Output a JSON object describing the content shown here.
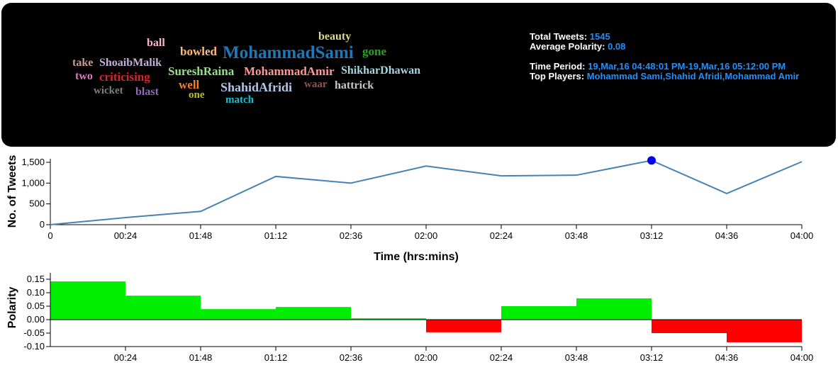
{
  "wordcloud": [
    {
      "text": "ball",
      "color": "#f7b6d2",
      "size": 16
    },
    {
      "text": "beauty",
      "color": "#dbdb8d",
      "size": 16
    },
    {
      "text": "bowled",
      "color": "#ffbb78",
      "size": 17
    },
    {
      "text": "MohammadSami",
      "color": "#1f77b4",
      "size": 25
    },
    {
      "text": "gone",
      "color": "#2ca02c",
      "size": 17
    },
    {
      "text": "take",
      "color": "#c49c94",
      "size": 16
    },
    {
      "text": "ShoaibMalik",
      "color": "#c5b0d5",
      "size": 16
    },
    {
      "text": "SureshRaina",
      "color": "#98df8a",
      "size": 17
    },
    {
      "text": "MohammadAmir",
      "color": "#ff9896",
      "size": 17
    },
    {
      "text": "ShikharDhawan",
      "color": "#9edae5",
      "size": 16
    },
    {
      "text": "two",
      "color": "#e377c2",
      "size": 16
    },
    {
      "text": "criticising",
      "color": "#d62728",
      "size": 17
    },
    {
      "text": "well",
      "color": "#ff7f0e",
      "size": 17
    },
    {
      "text": "ShahidAfridi",
      "color": "#aec7e8",
      "size": 18
    },
    {
      "text": "waar",
      "color": "#8c564b",
      "size": 15
    },
    {
      "text": "hattrick",
      "color": "#c7c7c7",
      "size": 16
    },
    {
      "text": "wicket",
      "color": "#7f7f7f",
      "size": 15
    },
    {
      "text": "blast",
      "color": "#9467bd",
      "size": 16
    },
    {
      "text": "one",
      "color": "#bcbd22",
      "size": 15
    },
    {
      "text": "match",
      "color": "#17becf",
      "size": 15
    }
  ],
  "stats": {
    "total_label": "Total Tweets: ",
    "total": "1545",
    "polarity_label": "Average Polarity: ",
    "polarity": "0.08",
    "period_label": "Time Period: ",
    "period": "19,Mar,16 04:48:01 PM-19,Mar,16 05:12:00 PM",
    "players_label": "Top Players: ",
    "players": "Mohammad Sami,Shahid Afridi,Mohammad Amir"
  },
  "chart_data": [
    {
      "type": "line",
      "xlabel": "Time (hrs:mins)",
      "ylabel": "No. of Tweets",
      "categories": [
        "0",
        "00:24",
        "01:48",
        "01:12",
        "02:36",
        "02:00",
        "02:24",
        "03:48",
        "03:12",
        "04:36",
        "04:00"
      ],
      "values": [
        0,
        170,
        320,
        1160,
        1000,
        1410,
        1175,
        1190,
        1545,
        750,
        1515
      ],
      "yticks": [
        "0",
        "500",
        "1,000",
        "1,500"
      ],
      "ylim": [
        0,
        1500
      ],
      "highlight_index": 8,
      "line_color": "#4682b4",
      "highlight_color": "#0000ee"
    },
    {
      "type": "bar",
      "ylabel": "Polarity",
      "categories": [
        "00:24",
        "01:48",
        "01:12",
        "02:36",
        "02:00",
        "02:24",
        "03:48",
        "03:12",
        "04:36",
        "04:00"
      ],
      "values": [
        0.142,
        0.089,
        0.039,
        0.047,
        0.005,
        -0.047,
        0.05,
        0.079,
        -0.05,
        -0.084
      ],
      "yticks": [
        "-0.10",
        "-0.05",
        "0.00",
        "0.05",
        "0.10",
        "0.15"
      ],
      "ylim": [
        -0.1,
        0.15
      ],
      "positive_color": "#00ee00",
      "negative_color": "#ff0000"
    }
  ]
}
